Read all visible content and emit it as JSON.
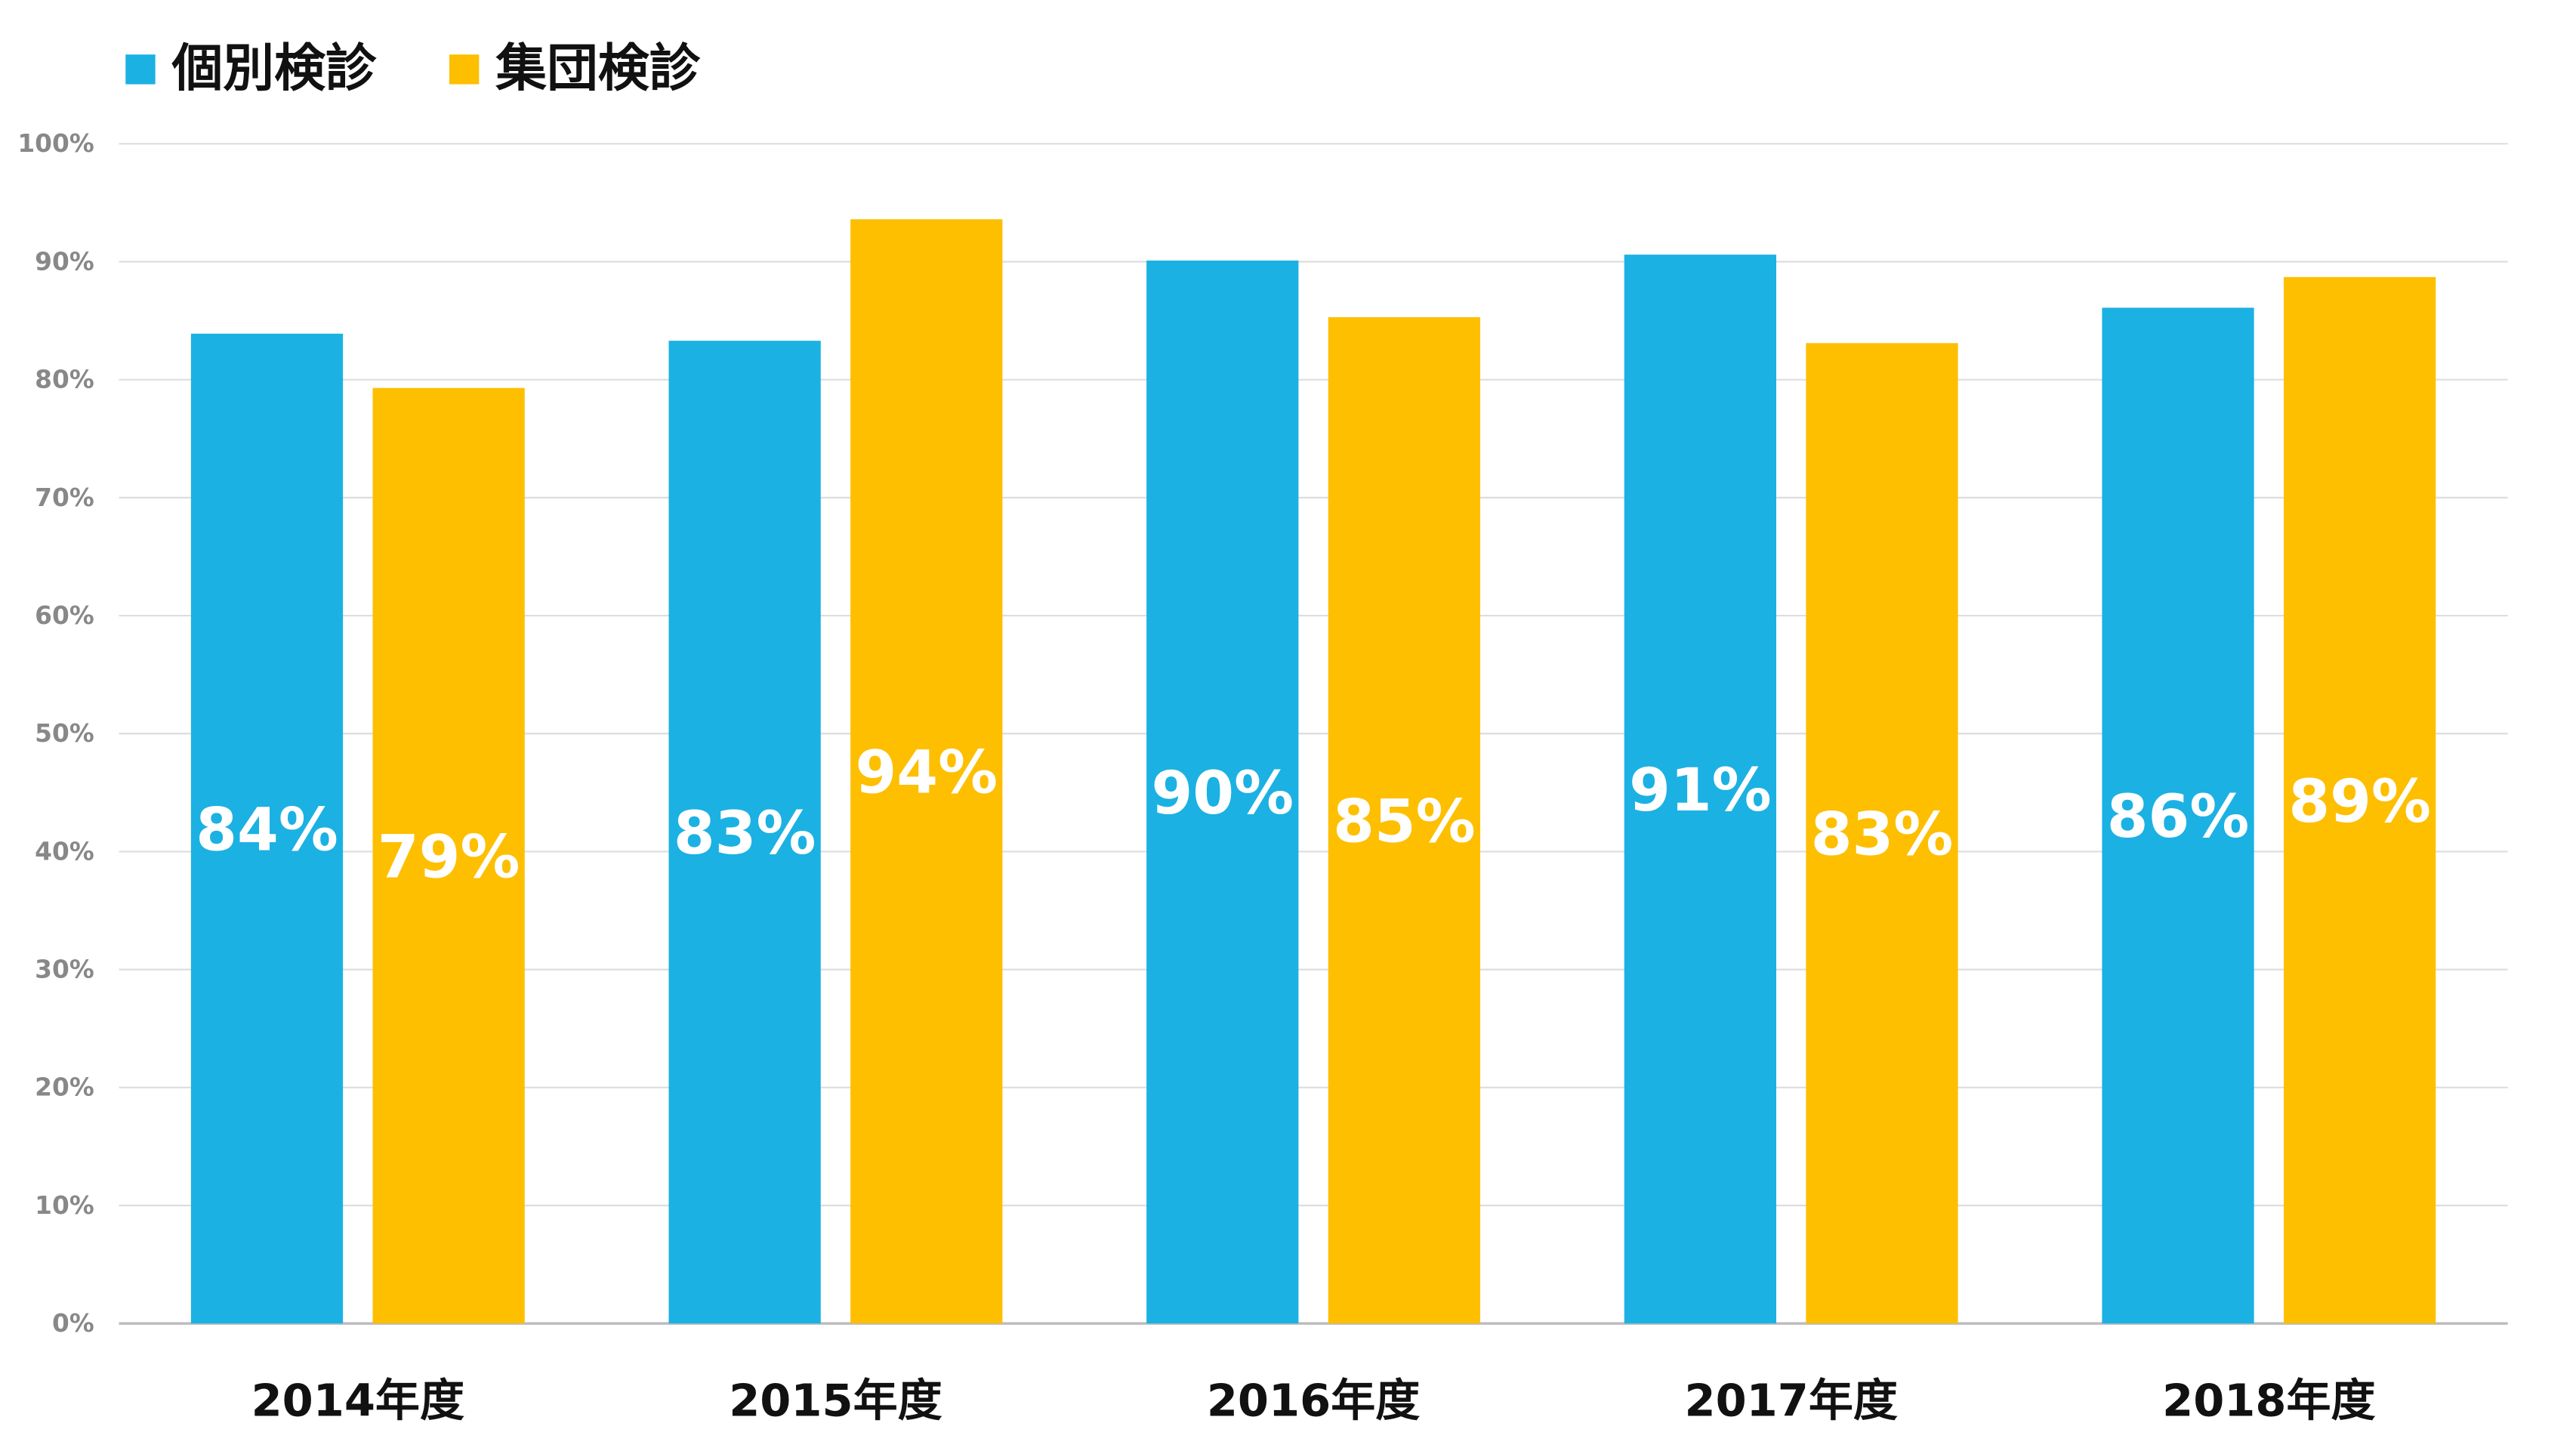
{
  "chart_data": {
    "type": "bar",
    "categories": [
      "2014年度",
      "2015年度",
      "2016年度",
      "2017年度",
      "2018年度"
    ],
    "series": [
      {
        "name": "個別検診",
        "color": "#1bb1e3",
        "values": [
          83.9,
          83.3,
          90.1,
          90.6,
          86.1
        ],
        "value_labels": [
          "84%",
          "83%",
          "90%",
          "91%",
          "86%"
        ]
      },
      {
        "name": "集団検診",
        "color": "#fdbf00",
        "values": [
          79.3,
          93.6,
          85.3,
          83.1,
          88.7
        ],
        "value_labels": [
          "79%",
          "94%",
          "85%",
          "83%",
          "89%"
        ]
      }
    ],
    "ylim": [
      0,
      100
    ],
    "yticks": [
      {
        "value": 0,
        "label": "0%"
      },
      {
        "value": 10,
        "label": "10%"
      },
      {
        "value": 20,
        "label": "20%"
      },
      {
        "value": 30,
        "label": "30%"
      },
      {
        "value": 40,
        "label": "40%"
      },
      {
        "value": 50,
        "label": "50%"
      },
      {
        "value": 60,
        "label": "60%"
      },
      {
        "value": 70,
        "label": "70%"
      },
      {
        "value": 80,
        "label": "80%"
      },
      {
        "value": 90,
        "label": "90%"
      },
      {
        "value": 100,
        "label": "100%"
      }
    ],
    "grid": true,
    "legend": "top-left"
  }
}
